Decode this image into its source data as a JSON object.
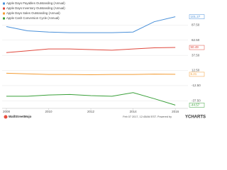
{
  "chart_data": {
    "type": "line",
    "x": [
      2008,
      2009,
      2010,
      2011,
      2012,
      2013,
      2014,
      2015,
      2016
    ],
    "xlim": [
      2007.8,
      2016.6
    ],
    "xticks": [
      2008,
      2010,
      2012,
      2014,
      2016
    ],
    "ylim": [
      -50,
      112.5
    ],
    "yticks": [
      {
        "value": 87.5,
        "label": "87.50"
      },
      {
        "value": 62.5,
        "label": "62.50"
      },
      {
        "value": 37.5,
        "label": "37.50"
      },
      {
        "value": 12.5,
        "label": "12.50"
      },
      {
        "value": -12.5,
        "label": "-12.50"
      },
      {
        "value": -37.5,
        "label": "-37.50"
      }
    ],
    "grid": true,
    "series": [
      {
        "name": "Apple Days Payables Outstanding (Annual)",
        "color": "#4a90d9",
        "values": [
          85,
          78,
          76,
          75,
          75,
          75,
          76,
          93,
          101.27
        ],
        "end_label": "101.27"
      },
      {
        "name": "Apple Days Inventory Outstanding (Annual)",
        "color": "#e0493e",
        "values": [
          42,
          45,
          48,
          48,
          47,
          46,
          48,
          50,
          50.49
        ],
        "end_label": "50.49"
      },
      {
        "name": "Apple Days Sales Outstanding (Annual)",
        "color": "#f39c34",
        "values": [
          8,
          7,
          6,
          6,
          5.5,
          6,
          6,
          6.5,
          6.21
        ],
        "end_label": "6.21"
      },
      {
        "name": "Apple Cash Conversion Cycle (Annual)",
        "color": "#3aa03a",
        "values": [
          -30,
          -30,
          -28,
          -27,
          -29,
          -30,
          -24,
          -34,
          -44.57
        ],
        "end_label": "-44.57"
      }
    ]
  },
  "footer": {
    "brand": "WallStreetMojo",
    "timestamp": "Feb 07 2017, 12:45AM EST. Powered by",
    "logo": "YCHARTS"
  }
}
